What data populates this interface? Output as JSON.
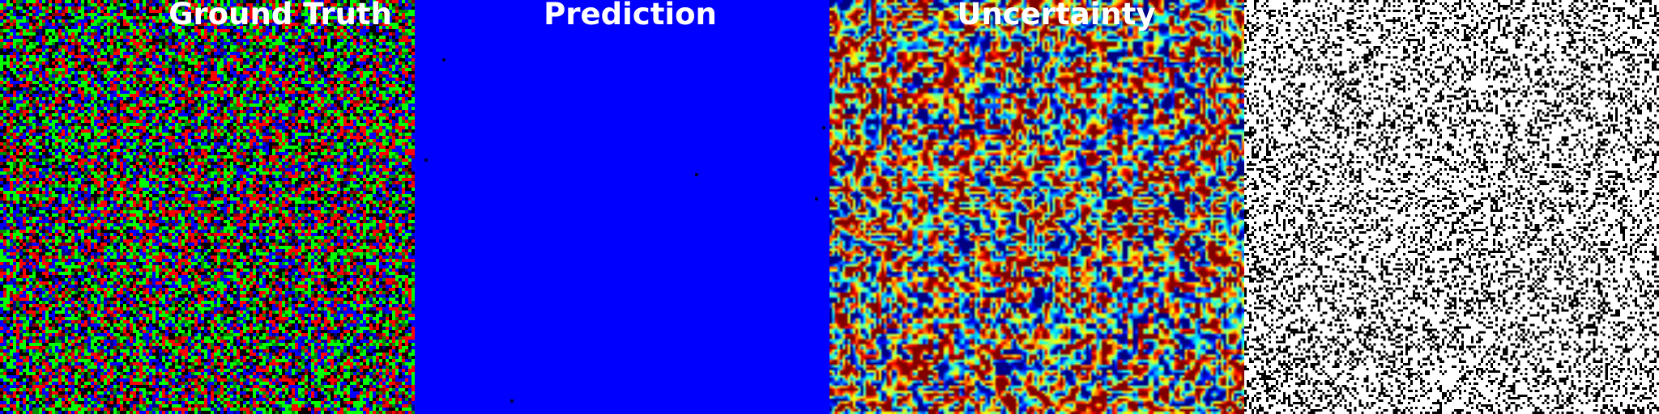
{
  "panels": [
    {
      "key": "ground_truth",
      "title": "Ground Truth"
    },
    {
      "key": "prediction",
      "title": "Prediction",
      "fill_color": "#0000ff"
    },
    {
      "key": "uncertainty",
      "title": "Uncertainty",
      "colormap": "jet"
    },
    {
      "key": "error",
      "title": ""
    }
  ],
  "colors": {
    "gt_palette": [
      "#ff0000",
      "#00ff00",
      "#0000ff",
      "#000000"
    ],
    "prediction_fill": "#0000ff",
    "error_fg": "#000000",
    "error_bg": "#ffffff"
  }
}
